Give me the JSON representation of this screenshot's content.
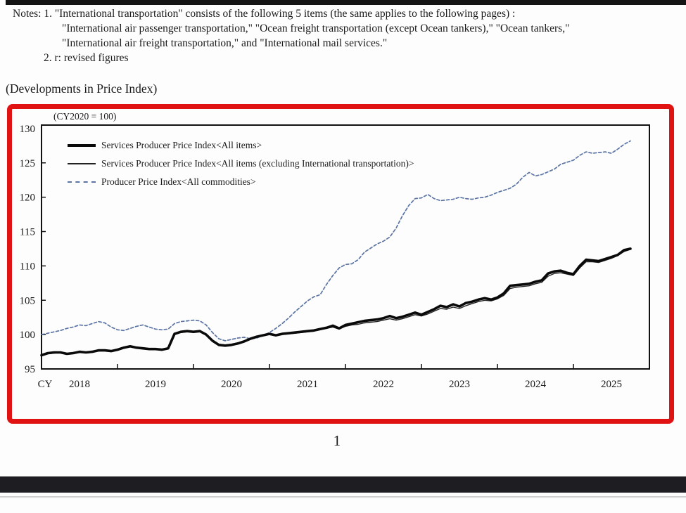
{
  "notes": {
    "line1": "Notes: 1. \"International transportation\" consists of the following 5 items (the same applies to the following pages) :",
    "line2": "\"International air passenger transportation,\" \"Ocean freight transportation (except Ocean tankers),\" \"Ocean tankers,\"",
    "line3": "\"International air freight transportation,\" and \"International mail services.\"",
    "line4": "2. r: revised figures"
  },
  "section_title": "(Developments in Price Index)",
  "page_number": "1",
  "chart": {
    "base_label": "(CY2020 = 100)",
    "frame_color": "#e11212",
    "sppi_color": "#0a0a0a",
    "ppi_color": "#5b74a3",
    "legend": [
      {
        "label": "Services Producer Price Index<All items>",
        "style": "thick"
      },
      {
        "label": "Services Producer Price Index<All items (excluding International transportation)>",
        "style": "thin"
      },
      {
        "label": "Producer Price Index<All commodities>",
        "style": "dashed"
      }
    ]
  },
  "chart_data": {
    "type": "line",
    "title": "(CY2020 = 100)",
    "frequency": "monthly",
    "x_start": "2018-01",
    "x_end": "2025-10",
    "x_total_months": 96,
    "x_label_prefix": "CY",
    "categories": [
      "2018",
      "2019",
      "2020",
      "2021",
      "2022",
      "2023",
      "2024",
      "2025"
    ],
    "ylim": [
      95,
      130.5
    ],
    "y_ticks": [
      95,
      100,
      105,
      110,
      115,
      120,
      125,
      130
    ],
    "grid": false,
    "legend_position": "top-left",
    "series": [
      {
        "name": "Services Producer Price Index<All items>",
        "line": "thick",
        "values": [
          97.0,
          97.3,
          97.4,
          97.4,
          97.2,
          97.3,
          97.5,
          97.4,
          97.5,
          97.7,
          97.7,
          97.6,
          97.8,
          98.1,
          98.3,
          98.1,
          98.0,
          97.9,
          97.9,
          97.8,
          98.0,
          100.1,
          100.4,
          100.5,
          100.4,
          100.5,
          100.0,
          99.1,
          98.5,
          98.4,
          98.5,
          98.7,
          99.0,
          99.4,
          99.7,
          99.9,
          100.1,
          99.9,
          100.1,
          100.2,
          100.3,
          100.4,
          100.5,
          100.6,
          100.8,
          101.0,
          101.3,
          100.9,
          101.4,
          101.6,
          101.8,
          102.0,
          102.1,
          102.2,
          102.4,
          102.7,
          102.4,
          102.6,
          102.9,
          103.2,
          102.9,
          103.3,
          103.7,
          104.2,
          104.0,
          104.4,
          104.1,
          104.6,
          104.8,
          105.1,
          105.3,
          105.1,
          105.4,
          106.0,
          107.1,
          107.2,
          107.3,
          107.4,
          107.7,
          107.9,
          108.9,
          109.2,
          109.3,
          109.0,
          108.8,
          110.0,
          110.9,
          110.8,
          110.7,
          111.0,
          111.3,
          111.6,
          112.3,
          112.5
        ]
      },
      {
        "name": "Services Producer Price Index<All items (excluding International transportation)>",
        "line": "thin",
        "values": [
          97.0,
          97.2,
          97.3,
          97.4,
          97.2,
          97.3,
          97.4,
          97.4,
          97.5,
          97.6,
          97.7,
          97.6,
          97.8,
          98.0,
          98.2,
          98.1,
          98.0,
          97.9,
          97.8,
          97.8,
          98.0,
          100.0,
          100.3,
          100.4,
          100.4,
          100.4,
          100.0,
          99.2,
          98.6,
          98.5,
          98.6,
          98.8,
          99.0,
          99.4,
          99.7,
          99.9,
          100.0,
          99.8,
          100.0,
          100.1,
          100.2,
          100.3,
          100.4,
          100.5,
          100.7,
          100.9,
          101.1,
          100.8,
          101.2,
          101.4,
          101.5,
          101.7,
          101.8,
          101.9,
          102.1,
          102.3,
          102.1,
          102.3,
          102.6,
          102.9,
          102.7,
          103.0,
          103.4,
          103.8,
          103.7,
          104.0,
          103.8,
          104.2,
          104.5,
          104.8,
          105.0,
          104.9,
          105.2,
          105.7,
          106.7,
          106.9,
          107.0,
          107.1,
          107.4,
          107.6,
          108.5,
          108.9,
          109.0,
          108.8,
          108.6,
          109.7,
          110.6,
          110.6,
          110.5,
          110.8,
          111.1,
          111.5,
          112.1,
          112.4
        ]
      },
      {
        "name": "Producer Price Index<All commodities>",
        "line": "dashed",
        "values": [
          100.0,
          100.2,
          100.4,
          100.6,
          100.9,
          101.1,
          101.4,
          101.3,
          101.6,
          101.9,
          101.7,
          101.1,
          100.7,
          100.6,
          100.9,
          101.2,
          101.4,
          101.1,
          100.8,
          100.7,
          100.8,
          101.6,
          101.9,
          102.0,
          102.1,
          102.0,
          101.4,
          100.3,
          99.4,
          99.1,
          99.3,
          99.5,
          99.6,
          99.4,
          99.5,
          99.9,
          100.3,
          100.9,
          101.6,
          102.4,
          103.3,
          104.1,
          104.9,
          105.5,
          105.8,
          107.3,
          108.6,
          109.7,
          110.2,
          110.3,
          110.9,
          112.0,
          112.6,
          113.2,
          113.6,
          114.2,
          115.5,
          117.3,
          118.8,
          119.8,
          119.9,
          120.4,
          119.8,
          119.5,
          119.6,
          119.7,
          120.0,
          119.8,
          119.7,
          119.9,
          120.0,
          120.3,
          120.7,
          121.0,
          121.3,
          121.9,
          122.9,
          123.6,
          123.1,
          123.3,
          123.7,
          124.1,
          124.8,
          125.1,
          125.4,
          126.1,
          126.6,
          126.4,
          126.5,
          126.6,
          126.4,
          127.0,
          127.7,
          128.2
        ]
      }
    ]
  }
}
